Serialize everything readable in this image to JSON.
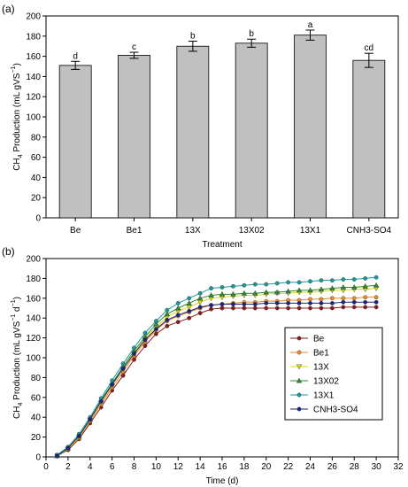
{
  "chart_data": [
    {
      "panel_label": "(a)",
      "type": "bar",
      "categories": [
        "Be",
        "Be1",
        "13X",
        "13X02",
        "13X1",
        "CNH3-SO4"
      ],
      "values": [
        151,
        161,
        170,
        173,
        181,
        156
      ],
      "errors": [
        4,
        3,
        5,
        4,
        5,
        7
      ],
      "significance": [
        "d",
        "c",
        "b",
        "b",
        "a",
        "cd"
      ],
      "xlabel": "Treatment",
      "ylabel": "CH4 Production (mL gVS−1)",
      "ylim": [
        0,
        200
      ],
      "yticks": [
        "0",
        "20",
        "40",
        "60",
        "80",
        "100",
        "120",
        "140",
        "160",
        "180",
        "200"
      ],
      "bar_color": "#c0c0c0",
      "grid": false
    },
    {
      "panel_label": "(b)",
      "type": "line",
      "x": [
        1,
        2,
        3,
        4,
        5,
        6,
        7,
        8,
        9,
        10,
        11,
        12,
        13,
        14,
        15,
        16,
        17,
        18,
        19,
        20,
        21,
        22,
        23,
        24,
        25,
        26,
        27,
        28,
        29,
        30
      ],
      "xlabel": "Time (d)",
      "ylabel": "CH4 Production (mL gVS−1 d−1)",
      "xlim": [
        0,
        32
      ],
      "ylim": [
        0,
        200
      ],
      "xticks": [
        "0",
        "2",
        "4",
        "6",
        "8",
        "10",
        "12",
        "14",
        "16",
        "18",
        "20",
        "22",
        "24",
        "26",
        "28",
        "30",
        "32"
      ],
      "yticks": [
        "0",
        "20",
        "40",
        "60",
        "80",
        "100",
        "120",
        "140",
        "160",
        "180",
        "200"
      ],
      "legend_position": "right",
      "grid": false,
      "series": [
        {
          "name": "Be",
          "color": "#8b1a1a",
          "marker": "circle",
          "values": [
            1,
            7,
            18,
            34,
            50,
            67,
            82,
            98,
            112,
            124,
            132,
            136,
            140,
            145,
            149,
            150,
            150,
            150,
            150,
            150,
            150,
            150,
            150,
            150,
            150,
            150,
            151,
            151,
            151,
            151
          ]
        },
        {
          "name": "Be1",
          "color": "#f08a24",
          "marker": "circle",
          "values": [
            1,
            8,
            19,
            36,
            53,
            70,
            86,
            102,
            116,
            128,
            137,
            142,
            146,
            150,
            153,
            154,
            155,
            156,
            156,
            157,
            157,
            158,
            158,
            159,
            159,
            160,
            160,
            160,
            161,
            161
          ]
        },
        {
          "name": "13X",
          "color": "#d8d816",
          "marker": "triangle-down",
          "values": [
            1,
            8,
            20,
            37,
            55,
            72,
            89,
            105,
            119,
            131,
            141,
            147,
            151,
            156,
            160,
            161,
            162,
            163,
            163,
            164,
            165,
            165,
            166,
            166,
            167,
            168,
            168,
            169,
            169,
            170
          ]
        },
        {
          "name": "13X02",
          "color": "#2e8b2e",
          "marker": "triangle-up",
          "values": [
            1,
            9,
            21,
            38,
            57,
            74,
            91,
            107,
            121,
            134,
            144,
            150,
            155,
            160,
            163,
            164,
            164,
            165,
            165,
            166,
            166,
            167,
            168,
            168,
            169,
            170,
            171,
            171,
            172,
            173
          ]
        },
        {
          "name": "13X1",
          "color": "#1a9a9a",
          "marker": "circle",
          "values": [
            2,
            10,
            23,
            40,
            59,
            77,
            94,
            110,
            125,
            137,
            148,
            155,
            160,
            165,
            170,
            171,
            172,
            173,
            174,
            174,
            175,
            176,
            176,
            177,
            178,
            178,
            179,
            179,
            180,
            181
          ]
        },
        {
          "name": "CNH3-SO4",
          "color": "#1a237e",
          "marker": "circle",
          "values": [
            1,
            9,
            21,
            38,
            56,
            73,
            89,
            104,
            118,
            129,
            138,
            143,
            147,
            151,
            153,
            154,
            154,
            154,
            154,
            155,
            155,
            155,
            155,
            155,
            155,
            155,
            156,
            156,
            156,
            156
          ]
        }
      ]
    }
  ]
}
